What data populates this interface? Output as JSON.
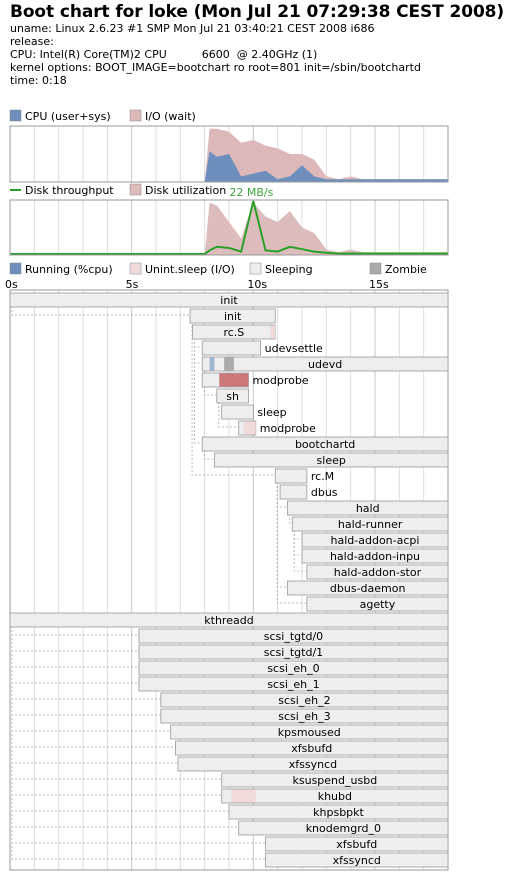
{
  "header": {
    "title": "Boot chart for loke (Mon Jul 21 07:29:38 CEST 2008)",
    "lines": [
      "uname: Linux 2.6.23 #1 SMP Mon Jul 21 03:40:21 CEST 2008 i686",
      "release:",
      "CPU: Intel(R) Core(TM)2 CPU          6600  @ 2.40GHz (1)",
      "kernel options: BOOT_IMAGE=bootchart ro root=801 init=/sbin/bootchartd",
      "time: 0:18"
    ]
  },
  "colors": {
    "cpu": "#6e8fbd",
    "io": "#ddb8b8",
    "throughput": "#2aa02a",
    "throughput_label": "#3ca63c",
    "utilization": "#ddbcbc",
    "running": "#6e8fbd",
    "uninterruptible": "#f0dada",
    "uninterruptible_dark": "#cc7777",
    "sleeping": "#eeeeee",
    "zombie": "#aaaaaa",
    "border": "#999999",
    "grid": "#dddddd"
  },
  "chart_data": [
    {
      "type": "area",
      "name": "cpu-io",
      "legend": [
        "CPU (user+sys)",
        "I/O (wait)"
      ],
      "x": [
        0,
        0.5,
        1,
        1.5,
        2,
        2.5,
        3,
        3.5,
        4,
        4.5,
        5,
        5.5,
        6,
        6.5,
        7,
        7.5,
        8,
        8.2,
        8.5,
        9,
        9.5,
        10,
        10.5,
        11,
        11.5,
        12,
        12.5,
        13,
        13.5,
        14,
        14.5,
        15,
        15.5,
        16,
        16.5,
        17,
        17.5,
        18
      ],
      "series": [
        {
          "name": "CPU (user+sys)",
          "values": [
            0,
            0,
            0,
            0,
            0,
            0,
            0,
            0,
            0,
            0,
            0,
            0,
            0,
            0,
            0,
            0,
            0,
            0.55,
            0.45,
            0.5,
            0.1,
            0.15,
            0.2,
            0.05,
            0.1,
            0.3,
            0.1,
            0.05,
            0.05,
            0.05,
            0.05,
            0.05,
            0.05,
            0.05,
            0.05,
            0.05,
            0.05,
            0.05
          ]
        },
        {
          "name": "I/O (wait)",
          "values": [
            0,
            0,
            0,
            0,
            0,
            0,
            0,
            0,
            0,
            0,
            0,
            0,
            0,
            0,
            0,
            0,
            0,
            0.95,
            0.95,
            0.9,
            0.7,
            0.75,
            0.65,
            0.6,
            0.5,
            0.5,
            0.4,
            0.1,
            0.05,
            0.1,
            0.05,
            0.05,
            0.05,
            0.05,
            0.05,
            0.05,
            0.05,
            0.05
          ]
        }
      ]
    },
    {
      "type": "line",
      "name": "disk",
      "legend": [
        "Disk throughput",
        "Disk utilization"
      ],
      "max_label": "22 MB/s",
      "x": [
        0,
        0.5,
        1,
        1.5,
        2,
        2.5,
        3,
        3.5,
        4,
        4.5,
        5,
        5.5,
        6,
        6.5,
        7,
        7.5,
        8,
        8.2,
        8.5,
        9,
        9.5,
        10,
        10.5,
        11,
        11.5,
        12,
        12.5,
        13,
        13.5,
        14,
        14.5,
        15,
        15.5,
        16,
        16.5,
        17,
        17.5,
        18
      ],
      "series": [
        {
          "name": "Disk throughput",
          "values": [
            0,
            0,
            0,
            0,
            0,
            0,
            0,
            0,
            0,
            0,
            0,
            0,
            0,
            0,
            0,
            0,
            0,
            1.5,
            3,
            2.5,
            1,
            22,
            1.5,
            1,
            3,
            2,
            1,
            0.5,
            0.2,
            0.2,
            0.2,
            0.2,
            0.2,
            0.2,
            0.2,
            0.2,
            0.2,
            0.2
          ]
        },
        {
          "name": "Disk utilization",
          "values": [
            0,
            0,
            0,
            0,
            0,
            0,
            0,
            0,
            0,
            0,
            0,
            0,
            0,
            0,
            0,
            0,
            0,
            0.95,
            0.9,
            0.6,
            0.3,
            0.95,
            0.7,
            0.6,
            0.8,
            0.5,
            0.4,
            0.1,
            0.05,
            0.1,
            0.05,
            0.05,
            0.05,
            0.05,
            0.05,
            0.05,
            0.05,
            0.05
          ]
        }
      ]
    },
    {
      "type": "bar",
      "name": "process-tree",
      "legend": [
        "Running (%cpu)",
        "Unint.sleep (I/O)",
        "Sleeping",
        "Zombie"
      ],
      "x_ticks": [
        "0s",
        "5s",
        "10s",
        "15s"
      ],
      "xlim": [
        0,
        18
      ],
      "processes": [
        {
          "name": "init",
          "start": 0,
          "end": 18,
          "depth": 0
        },
        {
          "name": "init",
          "start": 7.4,
          "end": 10.9,
          "depth": 1
        },
        {
          "name": "rc.S",
          "start": 7.5,
          "end": 10.9,
          "depth": 2,
          "io": [
            [
              10.7,
              10.9
            ]
          ]
        },
        {
          "name": "udevsettle",
          "start": 7.9,
          "end": 10.3,
          "depth": 3
        },
        {
          "name": "udevd",
          "start": 7.9,
          "end": 18,
          "depth": 3,
          "cpu": [
            [
              8.2,
              8.4
            ]
          ],
          "zombie": [
            [
              8.8,
              9.2
            ]
          ]
        },
        {
          "name": "modprobe",
          "start": 7.9,
          "end": 9.8,
          "depth": 4,
          "io_dark": [
            [
              8.6,
              9.8
            ]
          ]
        },
        {
          "name": "sh",
          "start": 8.5,
          "end": 9.8,
          "depth": 4
        },
        {
          "name": "sleep",
          "start": 8.7,
          "end": 10,
          "depth": 5
        },
        {
          "name": "modprobe",
          "start": 9.4,
          "end": 10.1,
          "depth": 5,
          "io": [
            [
              9.6,
              10.1
            ]
          ]
        },
        {
          "name": "bootchartd",
          "start": 7.9,
          "end": 18,
          "depth": 3
        },
        {
          "name": "sleep",
          "start": 8.4,
          "end": 18,
          "depth": 4
        },
        {
          "name": "rc.M",
          "start": 10.9,
          "end": 12.2,
          "depth": 2
        },
        {
          "name": "dbus",
          "start": 11.1,
          "end": 12.2,
          "depth": 3
        },
        {
          "name": "hald",
          "start": 11.4,
          "end": 18,
          "depth": 3
        },
        {
          "name": "hald-runner",
          "start": 11.6,
          "end": 18,
          "depth": 4
        },
        {
          "name": "hald-addon-acpi",
          "start": 12,
          "end": 18,
          "depth": 5
        },
        {
          "name": "hald-addon-inpu",
          "start": 12,
          "end": 18,
          "depth": 5
        },
        {
          "name": "hald-addon-stor",
          "start": 12.2,
          "end": 18,
          "depth": 5
        },
        {
          "name": "dbus-daemon",
          "start": 11.4,
          "end": 18,
          "depth": 3
        },
        {
          "name": "agetty",
          "start": 12.2,
          "end": 18,
          "depth": 3
        },
        {
          "name": "kthreadd",
          "start": 0,
          "end": 18,
          "depth": 0
        },
        {
          "name": "scsi_tgtd/0",
          "start": 5.3,
          "end": 18,
          "depth": 1
        },
        {
          "name": "scsi_tgtd/1",
          "start": 5.3,
          "end": 18,
          "depth": 1
        },
        {
          "name": "scsi_eh_0",
          "start": 5.3,
          "end": 18,
          "depth": 1
        },
        {
          "name": "scsi_eh_1",
          "start": 5.3,
          "end": 18,
          "depth": 1
        },
        {
          "name": "scsi_eh_2",
          "start": 6.2,
          "end": 18,
          "depth": 1
        },
        {
          "name": "scsi_eh_3",
          "start": 6.2,
          "end": 18,
          "depth": 1
        },
        {
          "name": "kpsmoused",
          "start": 6.6,
          "end": 18,
          "depth": 1
        },
        {
          "name": "xfsbufd",
          "start": 6.8,
          "end": 18,
          "depth": 1
        },
        {
          "name": "xfssyncd",
          "start": 6.9,
          "end": 18,
          "depth": 1
        },
        {
          "name": "ksuspend_usbd",
          "start": 8.7,
          "end": 18,
          "depth": 1
        },
        {
          "name": "khubd",
          "start": 8.7,
          "end": 18,
          "depth": 1,
          "io": [
            [
              9.1,
              10.1
            ]
          ]
        },
        {
          "name": "khpsbpkt",
          "start": 9,
          "end": 18,
          "depth": 1
        },
        {
          "name": "knodemgrd_0",
          "start": 9.4,
          "end": 18,
          "depth": 1
        },
        {
          "name": "xfsbufd",
          "start": 10.5,
          "end": 18,
          "depth": 1
        },
        {
          "name": "xfssyncd",
          "start": 10.5,
          "end": 18,
          "depth": 1
        }
      ]
    }
  ]
}
